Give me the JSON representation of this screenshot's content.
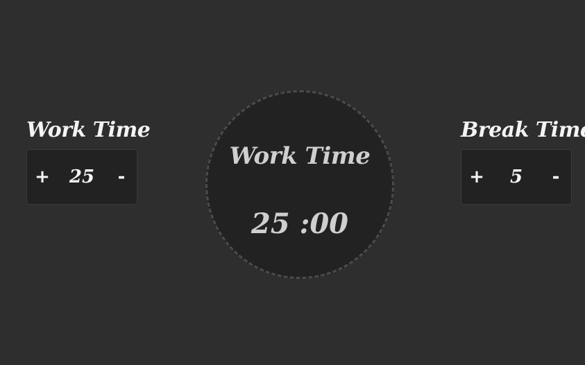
{
  "work_setting": {
    "title": "Work Time",
    "increment_label": "+",
    "value": "25",
    "decrement_label": "-"
  },
  "break_setting": {
    "title": "Break Time",
    "increment_label": "+",
    "value": "5",
    "decrement_label": "-"
  },
  "timer": {
    "label": "Work Time",
    "display": "25 :00"
  },
  "colors": {
    "background": "#2e2e2e",
    "panel": "#222222",
    "text": "#f2f2f2",
    "timer_text": "#cfcfcf",
    "dashed_border": "#4a4a4a"
  }
}
